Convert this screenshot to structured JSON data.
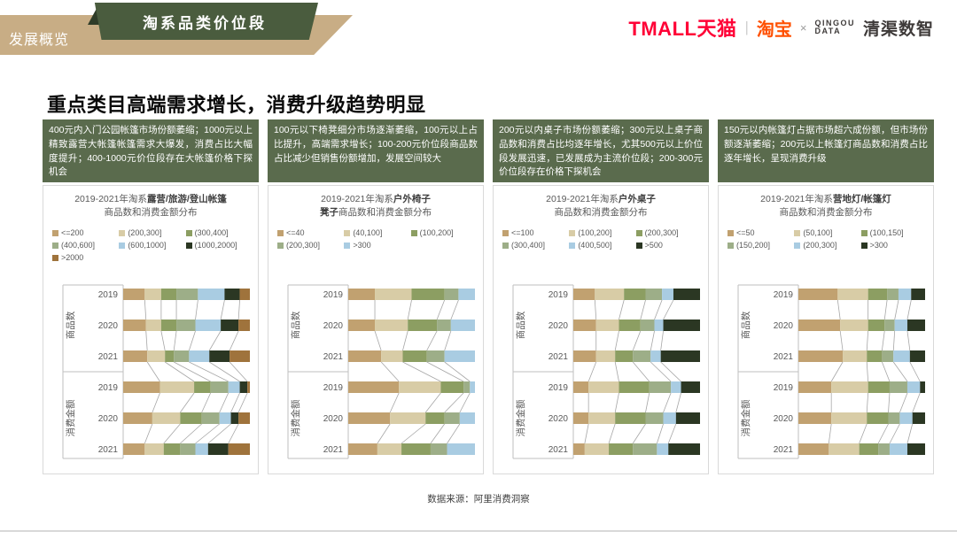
{
  "header": {
    "tab_label": "发展概览",
    "section_title": "淘系品类价位段",
    "logos": {
      "tmall": "TMALL天猫",
      "divider": "|",
      "taobao": "淘宝",
      "cross": "×",
      "qingou_line1": "QINGOU",
      "qingou_line2": "DATA",
      "qingqu": "清渠数智"
    }
  },
  "page_title": "重点类目高端需求增长，消费升级趋势明显",
  "colors": {
    "ribbon_green": "#4A5C3E",
    "ribbon_tan": "#C8AD85",
    "insight_green": "#5A6B4D",
    "tmall_red": "#FF0036",
    "taobao_orange": "#FF5000",
    "axis_gray": "#BFBFBF",
    "connector_gray": "#A6A6A6",
    "text_gray": "#595959"
  },
  "columns": [
    {
      "insight": "400元内入门公园帐篷市场份额萎缩；1000元以上精致露营大帐篷帐篷需求大爆发，消费占比大幅度提升；400-1000元价位段存在大帐篷价格下探机会",
      "title_lines": [
        [
          {
            "text": "2019-2021年淘系",
            "bold": false
          },
          {
            "text": "露营/旅游/登山帐篷",
            "bold": true
          }
        ],
        [
          {
            "text": "商品数和消费金额分布",
            "bold": false
          }
        ]
      ]
    },
    {
      "insight": "100元以下椅凳细分市场逐渐萎缩，100元以上占比提升，高端需求增长；100-200元价位段商品数占比减少但销售份额增加，发展空间较大",
      "title_lines": [
        [
          {
            "text": "2019-2021年淘系",
            "bold": false
          },
          {
            "text": "户外椅子",
            "bold": true
          }
        ],
        [
          {
            "text": "凳子",
            "bold": true
          },
          {
            "text": "商品数和消费金额分布",
            "bold": false
          }
        ]
      ]
    },
    {
      "insight": "200元以内桌子市场份额萎缩；300元以上桌子商品数和消费占比均逐年增长，尤其500元以上价位段发展迅速，已发展成为主流价位段；200-300元价位段存在价格下探机会",
      "title_lines": [
        [
          {
            "text": "2019-2021年淘系",
            "bold": false
          },
          {
            "text": "户外桌子",
            "bold": true
          }
        ],
        [
          {
            "text": "商品数和消费金额分布",
            "bold": false
          }
        ]
      ]
    },
    {
      "insight": "150元以内帐篷灯占据市场超六成份额，但市场份额逐渐萎缩；200元以上帐篷灯商品数和消费占比逐年增长，呈现消费升级",
      "title_lines": [
        [
          {
            "text": "2019-2021年淘系",
            "bold": false
          },
          {
            "text": "营地灯/帐篷灯",
            "bold": true
          }
        ],
        [
          {
            "text": "商品数和消费金额分布",
            "bold": false
          }
        ]
      ]
    }
  ],
  "chart_data": [
    {
      "type": "bar",
      "stacked": true,
      "orientation": "horizontal",
      "unit": "percent_share",
      "xlim": [
        0,
        100
      ],
      "title": "2019-2021年淘系露营/旅游/登山帐篷商品数和消费金额分布",
      "groups": [
        "商品数",
        "消费金额"
      ],
      "years": [
        "2019",
        "2020",
        "2021"
      ],
      "series": [
        {
          "name": "<=200",
          "color": "#C1A170"
        },
        {
          "name": "(200,300]",
          "color": "#D8CCA6"
        },
        {
          "name": "(300,400]",
          "color": "#8C9E62"
        },
        {
          "name": "(400,600]",
          "color": "#9DAE88"
        },
        {
          "name": "(600,1000]",
          "color": "#A9CCE2"
        },
        {
          "name": "(1000,2000]",
          "color": "#2B3723"
        },
        {
          "name": ">2000",
          "color": "#9F733C"
        }
      ],
      "rows": [
        {
          "group": "商品数",
          "year": "2019",
          "values": [
            17,
            13,
            12,
            17,
            21,
            12,
            8
          ]
        },
        {
          "group": "商品数",
          "year": "2020",
          "values": [
            18,
            12,
            12,
            15,
            20,
            14,
            9
          ]
        },
        {
          "group": "商品数",
          "year": "2021",
          "values": [
            19,
            14,
            7,
            12,
            16,
            16,
            16
          ]
        },
        {
          "group": "消费金额",
          "year": "2019",
          "values": [
            29,
            27,
            13,
            14,
            9,
            6,
            2
          ]
        },
        {
          "group": "消费金额",
          "year": "2020",
          "values": [
            23,
            22,
            17,
            14,
            9,
            6,
            9
          ]
        },
        {
          "group": "消费金额",
          "year": "2021",
          "values": [
            17,
            15,
            13,
            12,
            10,
            16,
            17
          ]
        }
      ]
    },
    {
      "type": "bar",
      "stacked": true,
      "orientation": "horizontal",
      "unit": "percent_share",
      "xlim": [
        0,
        100
      ],
      "title": "2019-2021年淘系户外椅子凳子商品数和消费金额分布",
      "groups": [
        "商品数",
        "消费金额"
      ],
      "years": [
        "2019",
        "2020",
        "2021"
      ],
      "series": [
        {
          "name": "<=40",
          "color": "#C1A170"
        },
        {
          "name": "(40,100]",
          "color": "#D8CCA6"
        },
        {
          "name": "(100,200]",
          "color": "#8C9E62"
        },
        {
          "name": "(200,300]",
          "color": "#9DAE88"
        },
        {
          "name": ">300",
          "color": "#A9CCE2"
        }
      ],
      "rows": [
        {
          "group": "商品数",
          "year": "2019",
          "values": [
            21,
            29,
            26,
            11,
            13
          ]
        },
        {
          "group": "商品数",
          "year": "2020",
          "values": [
            21,
            26,
            23,
            11,
            19
          ]
        },
        {
          "group": "商品数",
          "year": "2021",
          "values": [
            26,
            17,
            19,
            14,
            24
          ]
        },
        {
          "group": "消费金额",
          "year": "2019",
          "values": [
            40,
            33,
            18,
            5,
            4
          ]
        },
        {
          "group": "消费金额",
          "year": "2020",
          "values": [
            33,
            28,
            15,
            12,
            12
          ]
        },
        {
          "group": "消费金额",
          "year": "2021",
          "values": [
            23,
            19,
            23,
            13,
            22
          ]
        }
      ]
    },
    {
      "type": "bar",
      "stacked": true,
      "orientation": "horizontal",
      "unit": "percent_share",
      "xlim": [
        0,
        100
      ],
      "title": "2019-2021年淘系户外桌子商品数和消费金额分布",
      "groups": [
        "商品数",
        "消费金额"
      ],
      "years": [
        "2019",
        "2020",
        "2021"
      ],
      "series": [
        {
          "name": "<=100",
          "color": "#C1A170"
        },
        {
          "name": "(100,200]",
          "color": "#D8CCA6"
        },
        {
          "name": "(200,300]",
          "color": "#8C9E62"
        },
        {
          "name": "(300,400]",
          "color": "#9DAE88"
        },
        {
          "name": "(400,500]",
          "color": "#A9CCE2"
        },
        {
          "name": ">500",
          "color": "#2B3723"
        }
      ],
      "rows": [
        {
          "group": "商品数",
          "year": "2019",
          "values": [
            17,
            23,
            17,
            13,
            9,
            21
          ]
        },
        {
          "group": "商品数",
          "year": "2020",
          "values": [
            18,
            18,
            17,
            11,
            7,
            29
          ]
        },
        {
          "group": "商品数",
          "year": "2021",
          "values": [
            18,
            15,
            14,
            14,
            8,
            31
          ]
        },
        {
          "group": "消费金额",
          "year": "2019",
          "values": [
            12,
            24,
            24,
            17,
            8,
            15
          ]
        },
        {
          "group": "消费金额",
          "year": "2020",
          "values": [
            12,
            21,
            24,
            14,
            10,
            19
          ]
        },
        {
          "group": "消费金额",
          "year": "2021",
          "values": [
            9,
            19,
            19,
            19,
            9,
            25
          ]
        }
      ]
    },
    {
      "type": "bar",
      "stacked": true,
      "orientation": "horizontal",
      "unit": "percent_share",
      "xlim": [
        0,
        100
      ],
      "title": "2019-2021年淘系营地灯/帐篷灯商品数和消费金额分布",
      "groups": [
        "商品数",
        "消费金额"
      ],
      "years": [
        "2019",
        "2020",
        "2021"
      ],
      "series": [
        {
          "name": "<=50",
          "color": "#C1A170"
        },
        {
          "name": "(50,100]",
          "color": "#D8CCA6"
        },
        {
          "name": "(100,150]",
          "color": "#8C9E62"
        },
        {
          "name": "(150,200]",
          "color": "#9DAE88"
        },
        {
          "name": "(200,300]",
          "color": "#A9CCE2"
        },
        {
          "name": ">300",
          "color": "#2B3723"
        }
      ],
      "rows": [
        {
          "group": "商品数",
          "year": "2019",
          "values": [
            31,
            24,
            15,
            9,
            10,
            11
          ]
        },
        {
          "group": "商品数",
          "year": "2020",
          "values": [
            33,
            22,
            13,
            8,
            10,
            14
          ]
        },
        {
          "group": "商品数",
          "year": "2021",
          "values": [
            35,
            19,
            12,
            9,
            13,
            12
          ]
        },
        {
          "group": "消费金额",
          "year": "2019",
          "values": [
            26,
            29,
            17,
            14,
            10,
            4
          ]
        },
        {
          "group": "消费金额",
          "year": "2020",
          "values": [
            26,
            28,
            17,
            9,
            10,
            10
          ]
        },
        {
          "group": "消费金额",
          "year": "2021",
          "values": [
            24,
            24,
            15,
            9,
            14,
            14
          ]
        }
      ]
    }
  ],
  "footer": {
    "source": "数据来源：阿里消费洞察"
  }
}
